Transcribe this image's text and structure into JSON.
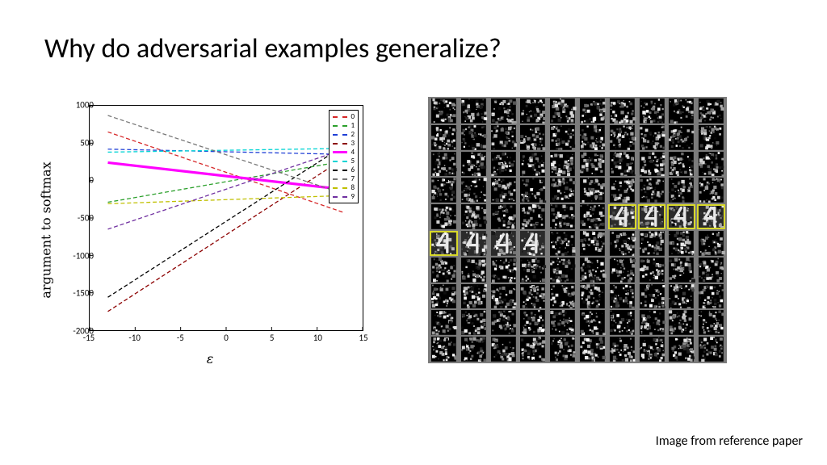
{
  "title": "Why do adversarial examples generalize?",
  "caption": "Image from reference paper",
  "chart": {
    "type": "line",
    "xlabel": "ε",
    "ylabel": "argument to softmax",
    "xlim": [
      -15,
      15
    ],
    "ylim": [
      -2000,
      1000
    ],
    "xticks": [
      -15,
      -10,
      -5,
      0,
      5,
      10,
      15
    ],
    "yticks": [
      -2000,
      -1500,
      -1000,
      -500,
      0,
      500,
      1000
    ],
    "background_color": "#ffffff",
    "border_color": "#000000",
    "tick_fontsize": 11,
    "label_fontsize": 16,
    "legend_position": "top-right",
    "series": [
      {
        "label": "0",
        "color": "#d62728",
        "dash": "5,3",
        "width": 1.3,
        "points": [
          [
            -13,
            650
          ],
          [
            13,
            -430
          ]
        ]
      },
      {
        "label": "1",
        "color": "#2ca02c",
        "dash": "5,3",
        "width": 1.3,
        "points": [
          [
            -13,
            -290
          ],
          [
            13,
            260
          ]
        ]
      },
      {
        "label": "2",
        "color": "#1f3fd6",
        "dash": "5,3",
        "width": 1.3,
        "points": [
          [
            -13,
            420
          ],
          [
            13,
            350
          ]
        ]
      },
      {
        "label": "3",
        "color": "#8c0000",
        "dash": "5,3",
        "width": 1.3,
        "points": [
          [
            -13,
            -1750
          ],
          [
            13,
            300
          ]
        ]
      },
      {
        "label": "4",
        "color": "#ff00ff",
        "dash": "none",
        "width": 3.2,
        "points": [
          [
            -13,
            240
          ],
          [
            13,
            -120
          ]
        ]
      },
      {
        "label": "5",
        "color": "#00d4d4",
        "dash": "5,3",
        "width": 1.3,
        "points": [
          [
            -13,
            380
          ],
          [
            13,
            430
          ]
        ]
      },
      {
        "label": "6",
        "color": "#000000",
        "dash": "5,3",
        "width": 1.3,
        "points": [
          [
            -13,
            -1560
          ],
          [
            13,
            470
          ]
        ]
      },
      {
        "label": "7",
        "color": "#777777",
        "dash": "5,3",
        "width": 1.3,
        "points": [
          [
            -13,
            870
          ],
          [
            13,
            -180
          ]
        ]
      },
      {
        "label": "8",
        "color": "#c0c000",
        "dash": "5,3",
        "width": 1.3,
        "points": [
          [
            -13,
            -310
          ],
          [
            13,
            -200
          ]
        ]
      },
      {
        "label": "9",
        "color": "#7030a0",
        "dash": "5,3",
        "width": 1.3,
        "points": [
          [
            -13,
            -650
          ],
          [
            13,
            420
          ]
        ]
      }
    ]
  },
  "grid": {
    "type": "image-grid",
    "rows": 10,
    "cols": 10,
    "background_color": "#7b7b7b",
    "gap": 2,
    "cell_background": "#000000",
    "highlight_color": "#d8d82a",
    "highlighted_cells": [
      [
        4,
        6
      ],
      [
        4,
        7
      ],
      [
        4,
        8
      ],
      [
        4,
        9
      ],
      [
        5,
        0
      ]
    ],
    "digit_cells": [
      [
        4,
        6
      ],
      [
        4,
        7
      ],
      [
        4,
        8
      ],
      [
        4,
        9
      ],
      [
        5,
        0
      ],
      [
        5,
        1
      ],
      [
        5,
        2
      ],
      [
        5,
        3
      ]
    ],
    "digit_label": "4"
  }
}
